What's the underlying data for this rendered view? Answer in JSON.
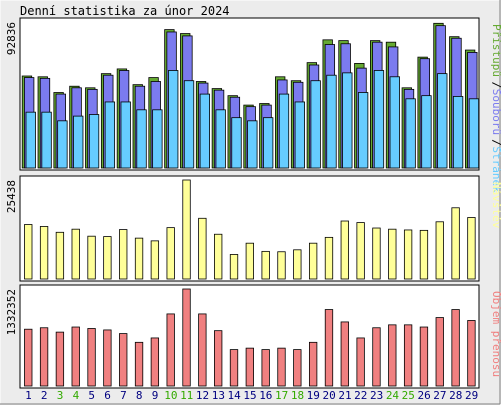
{
  "title": "Denní statistika za únor 2024",
  "colors": {
    "hits": "#66aa33",
    "files": "#7b7bef",
    "pages": "#66ccff",
    "visits": "#ffff99",
    "kbytes": "#f08080",
    "weekend_label": "#33aa00",
    "weekday_label": "#000080",
    "frame_bg": "#ececec",
    "panel_bg": "#ffffff"
  },
  "chart_data": [
    {
      "type": "bar",
      "name": "hits-files-pages",
      "ylabel_max": "92836",
      "ylim": [
        0,
        92836
      ],
      "legend": [
        "Přístupů",
        "Souborů",
        "Stránek"
      ],
      "legend_placement": "right",
      "categories": [
        "1",
        "2",
        "3",
        "4",
        "5",
        "6",
        "7",
        "8",
        "9",
        "10",
        "11",
        "12",
        "13",
        "14",
        "15",
        "16",
        "17",
        "18",
        "19",
        "20",
        "21",
        "22",
        "23",
        "24",
        "25",
        "26",
        "27",
        "28",
        "29"
      ],
      "weekend": [
        "3",
        "4",
        "10",
        "11",
        "17",
        "18",
        "24",
        "25"
      ],
      "series": [
        {
          "name": "Přístupů",
          "values": [
            58500,
            58000,
            48000,
            52000,
            51000,
            60000,
            63000,
            53000,
            57500,
            88000,
            85500,
            55000,
            50500,
            46000,
            40000,
            41000,
            58000,
            55500,
            67000,
            81500,
            81000,
            66500,
            81000,
            80000,
            51000,
            70500,
            92000,
            83500,
            75000
          ]
        },
        {
          "name": "Souborů",
          "values": [
            57500,
            57000,
            47000,
            51000,
            50000,
            59000,
            62000,
            52000,
            55000,
            86500,
            84000,
            54000,
            49500,
            45000,
            39000,
            40000,
            56000,
            54500,
            65500,
            78500,
            79000,
            63500,
            80000,
            77000,
            50000,
            69500,
            90500,
            82500,
            73500
          ]
        },
        {
          "name": "Stránek",
          "values": [
            35500,
            35500,
            30000,
            33000,
            34000,
            42000,
            42000,
            37000,
            37000,
            62000,
            55500,
            47000,
            37000,
            32000,
            30000,
            32000,
            47000,
            42000,
            55500,
            59000,
            60500,
            48000,
            62000,
            58000,
            44000,
            46000,
            60000,
            45500,
            44000
          ]
        }
      ]
    },
    {
      "type": "bar",
      "name": "visits",
      "ylabel_max": "25438",
      "ylim": [
        0,
        25438
      ],
      "legend": [
        "Návštěv"
      ],
      "legend_placement": "right",
      "categories": [
        "1",
        "2",
        "3",
        "4",
        "5",
        "6",
        "7",
        "8",
        "9",
        "10",
        "11",
        "12",
        "13",
        "14",
        "15",
        "16",
        "17",
        "18",
        "19",
        "20",
        "21",
        "22",
        "23",
        "24",
        "25",
        "26",
        "27",
        "28",
        "29"
      ],
      "series": [
        {
          "name": "Návštěv",
          "values": [
            14000,
            13500,
            12000,
            12800,
            11000,
            10900,
            12700,
            10500,
            9800,
            13200,
            25438,
            15600,
            11500,
            6300,
            9200,
            7100,
            7000,
            7500,
            9200,
            10700,
            14900,
            14500,
            13100,
            12800,
            12600,
            12500,
            14700,
            18300,
            15800
          ]
        }
      ]
    },
    {
      "type": "bar",
      "name": "kbytes",
      "ylabel_max": "1332352",
      "ylim": [
        0,
        1332352
      ],
      "legend": [
        "Objem přenosu"
      ],
      "legend_placement": "right",
      "categories": [
        "1",
        "2",
        "3",
        "4",
        "5",
        "6",
        "7",
        "8",
        "9",
        "10",
        "11",
        "12",
        "13",
        "14",
        "15",
        "16",
        "17",
        "18",
        "19",
        "20",
        "21",
        "22",
        "23",
        "24",
        "25",
        "26",
        "27",
        "28",
        "29"
      ],
      "series": [
        {
          "name": "Objem přenosu",
          "values": [
            780000,
            800000,
            740000,
            810000,
            790000,
            770000,
            720000,
            600000,
            660000,
            990000,
            1332352,
            990000,
            760000,
            500000,
            520000,
            500000,
            520000,
            500000,
            600000,
            1050000,
            880000,
            660000,
            800000,
            840000,
            840000,
            810000,
            940000,
            1050000,
            900000
          ]
        }
      ]
    }
  ]
}
